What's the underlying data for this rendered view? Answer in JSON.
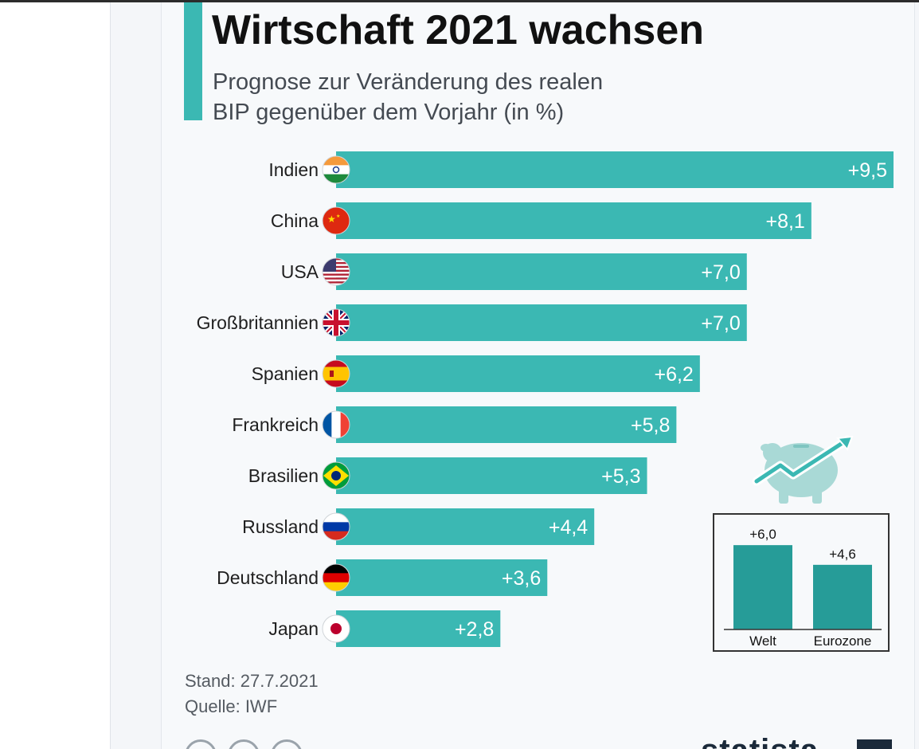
{
  "title": "Wirtschaft 2021 wachsen",
  "subtitle_line1": "Prognose zur Veränderung des realen",
  "subtitle_line2": "BIP gegenüber dem Vorjahr (in %)",
  "colors": {
    "accent": "#3bb8b3",
    "inset_bar": "#269c98",
    "text": "#111111"
  },
  "chart_data": {
    "type": "bar",
    "orientation": "horizontal",
    "title": "Wirtschaft 2021 wachsen",
    "ylabel": "Prognose zur Veränderung des realen BIP gegenüber dem Vorjahr (in %)",
    "xlim": [
      0,
      9.5
    ],
    "categories": [
      "Indien",
      "China",
      "USA",
      "Großbritannien",
      "Spanien",
      "Frankreich",
      "Brasilien",
      "Russland",
      "Deutschland",
      "Japan"
    ],
    "flag_icons": [
      "india-flag-icon",
      "china-flag-icon",
      "usa-flag-icon",
      "uk-flag-icon",
      "spain-flag-icon",
      "france-flag-icon",
      "brazil-flag-icon",
      "russia-flag-icon",
      "germany-flag-icon",
      "japan-flag-icon"
    ],
    "values": [
      9.5,
      8.1,
      7.0,
      7.0,
      6.2,
      5.8,
      5.3,
      4.4,
      3.6,
      2.8
    ],
    "value_labels": [
      "+9,5",
      "+8,1",
      "+7,0",
      "+7,0",
      "+6,2",
      "+5,8",
      "+5,3",
      "+4,4",
      "+3,6",
      "+2,8"
    ]
  },
  "inset_chart": {
    "type": "bar",
    "icon": "piggy-bank-growth-icon",
    "categories": [
      "Welt",
      "Eurozone"
    ],
    "values": [
      6.0,
      4.6
    ],
    "value_labels": [
      "+6,0",
      "+4,6"
    ]
  },
  "footer": {
    "stand": "Stand: 27.7.2021",
    "quelle": "Quelle: IWF"
  }
}
